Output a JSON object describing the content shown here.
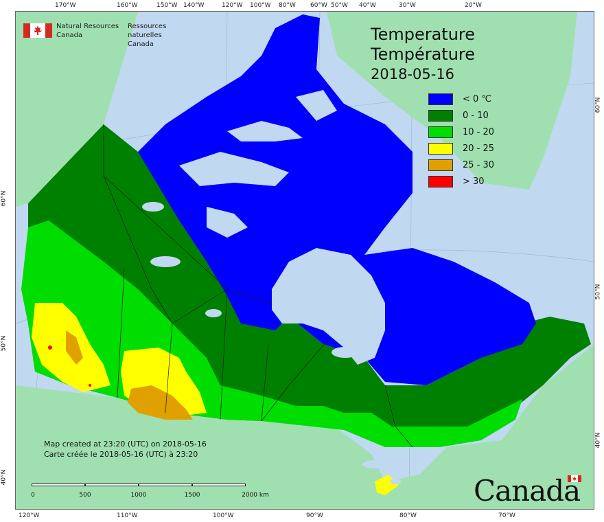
{
  "header": {
    "org_en_line1": "Natural Resources",
    "org_en_line2": "Canada",
    "org_fr_line1": "Ressources naturelles",
    "org_fr_line2": "Canada"
  },
  "title": {
    "en": "Temperature",
    "fr": "Température",
    "date": "2018-05-16"
  },
  "legend": [
    {
      "label": "< 0 ℃",
      "color": "#0000ff"
    },
    {
      "label": "0 - 10",
      "color": "#008000"
    },
    {
      "label": "10 - 20",
      "color": "#00dd00"
    },
    {
      "label": "20 - 25",
      "color": "#ffff00"
    },
    {
      "label": "25 - 30",
      "color": "#e0a000"
    },
    {
      "label": "> 30",
      "color": "#ff0000"
    }
  ],
  "credits": {
    "line_en": "Map created at 23:20 (UTC) on 2018-05-16",
    "line_fr": "Carte créée le 2018-05-16 (UTC) à 23:20"
  },
  "scale": {
    "ticks": [
      "0",
      "500",
      "1000",
      "1500",
      "2000  km"
    ]
  },
  "wordmark": "Canada",
  "graticule": {
    "top": [
      "170°W",
      "160°W",
      "150°W",
      "140°W",
      "120°W",
      "100°W",
      "80°W",
      "60°W",
      "50°W",
      "40°W",
      "30°W",
      "20°W"
    ],
    "bottom": [
      "120°W",
      "110°W",
      "100°W",
      "90°W",
      "80°W",
      "70°W"
    ],
    "left": [
      "60°N",
      "50°N",
      "40°N"
    ],
    "right": [
      "60°N",
      "50°N",
      "40°N"
    ]
  },
  "colors": {
    "ocean": "#c0d8f0",
    "land_other": "#a0e0b0",
    "lake": "#c0d8f0"
  }
}
